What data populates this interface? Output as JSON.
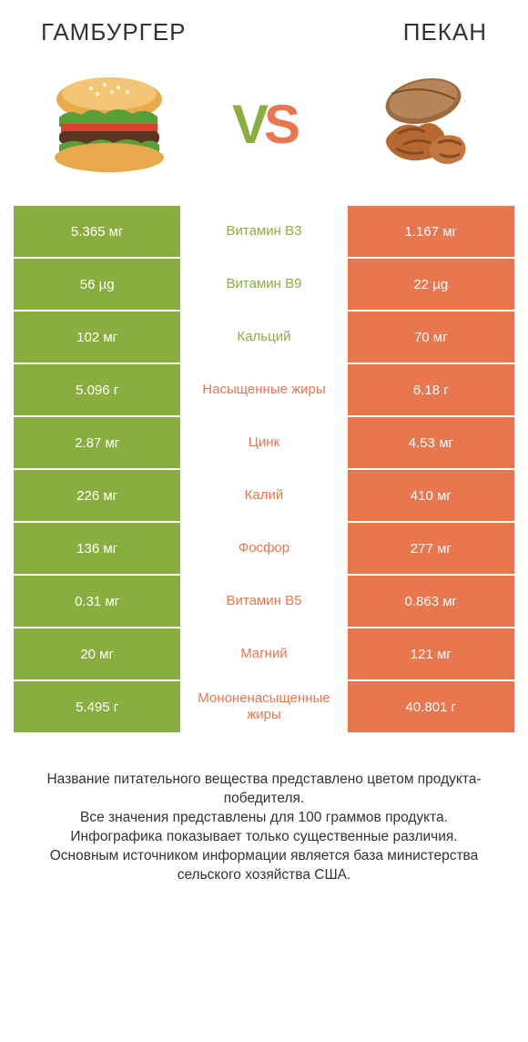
{
  "colors": {
    "green": "#8aad3f",
    "orange": "#e8764f",
    "white": "#ffffff",
    "text": "#333333"
  },
  "header": {
    "left_title": "ГАМБУРГЕР",
    "right_title": "ПЕКАН"
  },
  "vs": {
    "v": "V",
    "s": "S"
  },
  "rows": [
    {
      "left": "5.365 мг",
      "mid": "Витамин B3",
      "right": "1.167 мг",
      "winner": "left"
    },
    {
      "left": "56 µg",
      "mid": "Витамин B9",
      "right": "22 µg",
      "winner": "left"
    },
    {
      "left": "102 мг",
      "mid": "Кальций",
      "right": "70 мг",
      "winner": "left"
    },
    {
      "left": "5.096 г",
      "mid": "Насыщенные жиры",
      "right": "6.18 г",
      "winner": "right"
    },
    {
      "left": "2.87 мг",
      "mid": "Цинк",
      "right": "4.53 мг",
      "winner": "right"
    },
    {
      "left": "226 мг",
      "mid": "Калий",
      "right": "410 мг",
      "winner": "right"
    },
    {
      "left": "136 мг",
      "mid": "Фосфор",
      "right": "277 мг",
      "winner": "right"
    },
    {
      "left": "0.31 мг",
      "mid": "Витамин B5",
      "right": "0.863 мг",
      "winner": "right"
    },
    {
      "left": "20 мг",
      "mid": "Магний",
      "right": "121 мг",
      "winner": "right"
    },
    {
      "left": "5.495 г",
      "mid": "Мононенасыщенные жиры",
      "right": "40.801 г",
      "winner": "right"
    }
  ],
  "footer": {
    "line1": "Название питательного вещества представлено цветом продукта-победителя.",
    "line2": "Все значения представлены для 100 граммов продукта.",
    "line3": "Инфографика показывает только существенные различия.",
    "line4": "Основным источником информации является база министерства сельского хозяйства США."
  }
}
